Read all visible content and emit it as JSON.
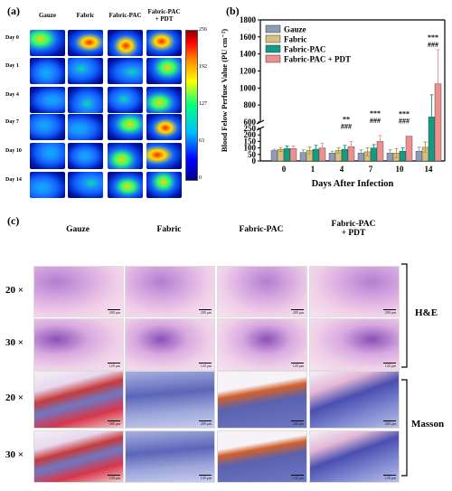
{
  "panel_a": {
    "label": "(a)",
    "columns": [
      "Gauze",
      "Fabric",
      "Fabric-PAC",
      "Fabric-PAC\n+ PDT"
    ],
    "rows": [
      "Day 0",
      "Day 1",
      "Day 4",
      "Day 7",
      "Day 10",
      "Day 14"
    ],
    "colorbar_ticks": [
      "256",
      "192",
      "127",
      "63",
      "0"
    ],
    "colormap": [
      "#00008b",
      "#0000ff",
      "#00bfff",
      "#00ff7f",
      "#ffff00",
      "#ff8c00",
      "#ff0000",
      "#8b0000"
    ]
  },
  "panel_b": {
    "label": "(b)"
  },
  "chart_data": {
    "type": "bar",
    "title": "",
    "xlabel": "Days After Infection",
    "ylabel": "Blood Felow Perfuse Value (PU cm⁻²)",
    "categories": [
      "0",
      "1",
      "4",
      "7",
      "10",
      "14"
    ],
    "y_ticks_lower": [
      "0",
      "50",
      "100",
      "150",
      "200",
      "250"
    ],
    "y_ticks_upper": [
      "600",
      "800",
      "1000",
      "1200",
      "1400",
      "1600",
      "1800"
    ],
    "axis_break": [
      250,
      600
    ],
    "ylim": [
      0,
      1800
    ],
    "series": [
      {
        "name": "Gauze",
        "color": "#8f9cb6",
        "values": [
          80,
          65,
          60,
          60,
          60,
          75
        ],
        "errors": [
          10,
          20,
          15,
          25,
          25,
          30
        ]
      },
      {
        "name": "Fabric",
        "color": "#d9bf7c",
        "values": [
          88,
          80,
          80,
          70,
          60,
          105
        ],
        "errors": [
          15,
          25,
          20,
          30,
          35,
          40
        ]
      },
      {
        "name": "Fabric-PAC",
        "color": "#159a86",
        "values": [
          95,
          90,
          90,
          100,
          75,
          660
        ],
        "errors": [
          20,
          30,
          30,
          25,
          25,
          260
        ]
      },
      {
        "name": "Fabric-PAC + PDT",
        "color": "#ee8f8f",
        "values": [
          95,
          100,
          110,
          150,
          190,
          1050
        ],
        "errors": [
          20,
          35,
          40,
          45,
          0,
          400
        ]
      }
    ],
    "annotations": [
      {
        "category": "4",
        "lines": [
          "**",
          "###"
        ]
      },
      {
        "category": "7",
        "lines": [
          "***",
          "###"
        ]
      },
      {
        "category": "10",
        "lines": [
          "***",
          "###"
        ]
      },
      {
        "category": "14",
        "lines": [
          "***",
          "###"
        ]
      }
    ],
    "legend_position": "top-left",
    "grid": false
  },
  "panel_c": {
    "label": "(c)",
    "columns": [
      "Gauze",
      "Fabric",
      "Fabric-PAC",
      "Fabric-PAC\n+ PDT"
    ],
    "magnifications": [
      "20 ×",
      "30 ×",
      "20 ×",
      "30 ×"
    ],
    "stains": [
      "H&E",
      "Masson"
    ],
    "scale_bar_20x": "200 μm",
    "scale_bar_30x": "120 μm"
  }
}
